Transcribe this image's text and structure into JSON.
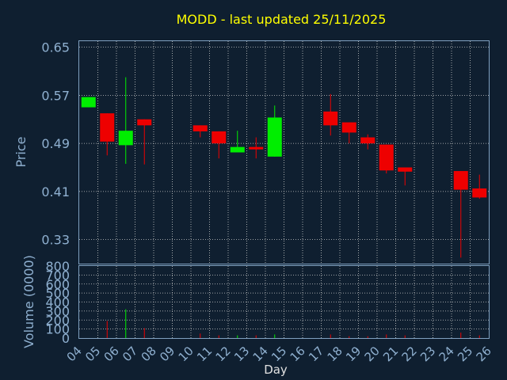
{
  "chart_data": {
    "type": "candlestick",
    "title": "MODD - last updated 25/11/2025",
    "price_axis": {
      "label": "Price",
      "ylim": [
        0.29,
        0.66
      ],
      "ticks": [
        "0.65",
        "0.57",
        "0.49",
        "0.41",
        "0.33"
      ],
      "tick_values": [
        0.65,
        0.57,
        0.49,
        0.41,
        0.33
      ]
    },
    "volume_axis": {
      "label": "Volume (0000)",
      "ylim": [
        0,
        800
      ],
      "ticks": [
        "800",
        "700",
        "600",
        "500",
        "400",
        "300",
        "200",
        "100",
        "0"
      ],
      "tick_values": [
        800,
        700,
        600,
        500,
        400,
        300,
        200,
        100,
        0
      ]
    },
    "x_axis": {
      "label": "Day",
      "ticks": [
        "04",
        "05",
        "06",
        "07",
        "08",
        "09",
        "10",
        "11",
        "12",
        "13",
        "14",
        "15",
        "16",
        "17",
        "18",
        "19",
        "20",
        "21",
        "22",
        "23",
        "24",
        "25",
        "26"
      ]
    },
    "grid": true,
    "colors": {
      "background": "#0f1f30",
      "up": "#00ee00",
      "down": "#ee0000",
      "title": "#ffff00",
      "axis_text": "#8fb0d0",
      "grid": "#cccccc"
    },
    "candles": [
      {
        "day": "04",
        "open": 0.55,
        "high": 0.567,
        "low": 0.55,
        "close": 0.567
      },
      {
        "day": "05",
        "open": 0.54,
        "high": 0.54,
        "low": 0.47,
        "close": 0.493
      },
      {
        "day": "06",
        "open": 0.487,
        "high": 0.6,
        "low": 0.456,
        "close": 0.511
      },
      {
        "day": "07",
        "open": 0.53,
        "high": 0.53,
        "low": 0.455,
        "close": 0.52
      },
      {
        "day": "10",
        "open": 0.52,
        "high": 0.52,
        "low": 0.5,
        "close": 0.51
      },
      {
        "day": "11",
        "open": 0.51,
        "high": 0.51,
        "low": 0.465,
        "close": 0.49
      },
      {
        "day": "12",
        "open": 0.475,
        "high": 0.511,
        "low": 0.475,
        "close": 0.484
      },
      {
        "day": "13",
        "open": 0.484,
        "high": 0.5,
        "low": 0.465,
        "close": 0.48
      },
      {
        "day": "14",
        "open": 0.468,
        "high": 0.553,
        "low": 0.468,
        "close": 0.533
      },
      {
        "day": "17",
        "open": 0.543,
        "high": 0.572,
        "low": 0.503,
        "close": 0.52
      },
      {
        "day": "18",
        "open": 0.525,
        "high": 0.525,
        "low": 0.49,
        "close": 0.508
      },
      {
        "day": "19",
        "open": 0.5,
        "high": 0.505,
        "low": 0.48,
        "close": 0.49
      },
      {
        "day": "20",
        "open": 0.488,
        "high": 0.488,
        "low": 0.44,
        "close": 0.445
      },
      {
        "day": "21",
        "open": 0.45,
        "high": 0.45,
        "low": 0.42,
        "close": 0.443
      },
      {
        "day": "24",
        "open": 0.444,
        "high": 0.444,
        "low": 0.3,
        "close": 0.413
      },
      {
        "day": "25",
        "open": 0.415,
        "high": 0.438,
        "low": 0.398,
        "close": 0.4
      }
    ],
    "volume": [
      {
        "day": "05",
        "value": 190
      },
      {
        "day": "06",
        "value": 320
      },
      {
        "day": "07",
        "value": 110
      },
      {
        "day": "10",
        "value": 50
      },
      {
        "day": "11",
        "value": 30
      },
      {
        "day": "12",
        "value": 30
      },
      {
        "day": "13",
        "value": 30
      },
      {
        "day": "14",
        "value": 40
      },
      {
        "day": "17",
        "value": 40
      },
      {
        "day": "18",
        "value": 20
      },
      {
        "day": "19",
        "value": 20
      },
      {
        "day": "20",
        "value": 40
      },
      {
        "day": "21",
        "value": 30
      },
      {
        "day": "24",
        "value": 60
      },
      {
        "day": "25",
        "value": 30
      }
    ]
  }
}
